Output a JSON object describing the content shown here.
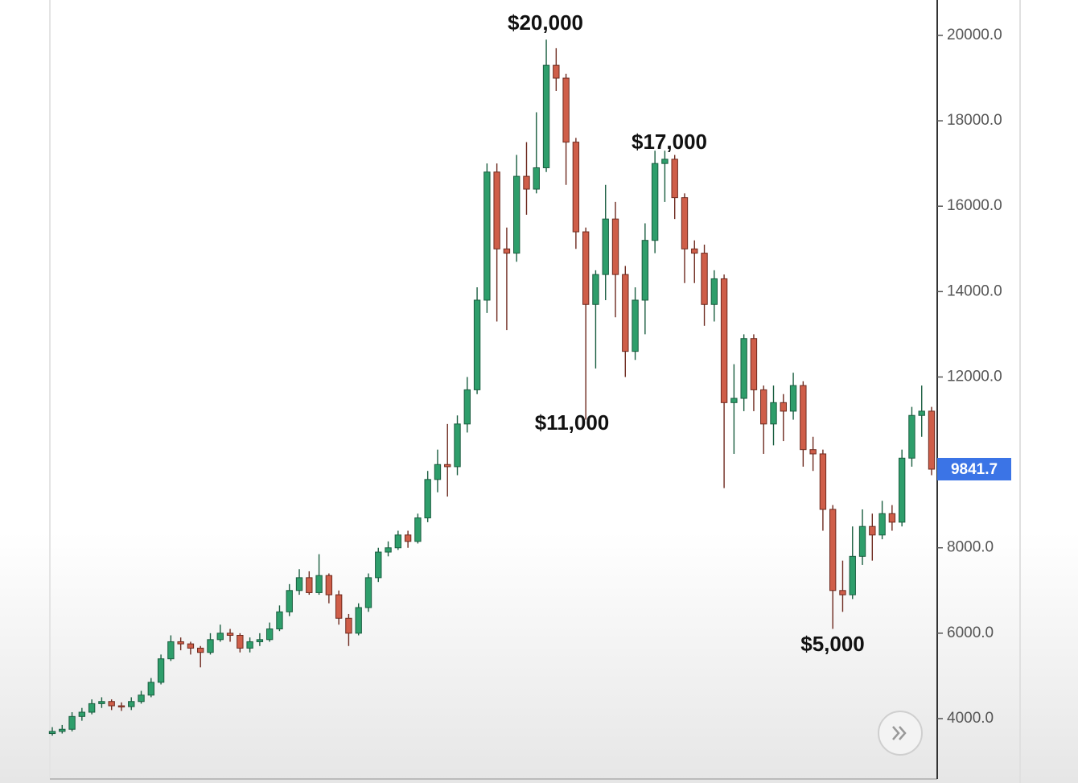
{
  "chart_data": {
    "type": "candlestick",
    "up_color": "#2e9e6b",
    "down_color": "#cf5e49",
    "open": [
      3650,
      3700,
      3750,
      4050,
      4150,
      4350,
      4400,
      4300,
      4280,
      4400,
      4550,
      4850,
      5400,
      5800,
      5750,
      5650,
      5550,
      5850,
      6000,
      5950,
      5650,
      5800,
      5850,
      6100,
      6500,
      7000,
      7300,
      6950,
      7350,
      6900,
      6350,
      6000,
      6600,
      7300,
      7900,
      8000,
      8300,
      8150,
      8700,
      9600,
      9950,
      9900,
      10900,
      11700,
      13800,
      16800,
      15000,
      14900,
      16700,
      16400,
      16900,
      19300,
      19000,
      17500,
      15400,
      13700,
      14400,
      15700,
      14400,
      12600,
      13800,
      15200,
      17000,
      17100,
      16200,
      15000,
      14900,
      13700,
      14300,
      11400,
      11500,
      12900,
      11700,
      10900,
      11400,
      11200,
      11800,
      10300,
      10200,
      8900,
      7000,
      6900,
      7800,
      8500,
      8300,
      8800,
      8600,
      10100,
      11100,
      11200
    ],
    "high": [
      3800,
      3850,
      4150,
      4250,
      4450,
      4500,
      4450,
      4380,
      4500,
      4650,
      4950,
      5500,
      5950,
      5900,
      5800,
      5700,
      6000,
      6200,
      6100,
      6000,
      5900,
      6000,
      6250,
      6650,
      7150,
      7500,
      7450,
      7850,
      7400,
      7000,
      6450,
      6700,
      7400,
      8000,
      8150,
      8400,
      8400,
      8800,
      9800,
      10300,
      10900,
      11100,
      12000,
      14100,
      17000,
      17000,
      15500,
      17200,
      17500,
      18200,
      19900,
      19700,
      19100,
      17600,
      15500,
      14500,
      16500,
      16100,
      14600,
      14100,
      15600,
      17300,
      17300,
      17200,
      16300,
      15200,
      15100,
      14500,
      14400,
      12300,
      13000,
      13000,
      11800,
      11800,
      11600,
      12100,
      11900,
      10600,
      10300,
      9000,
      7700,
      8500,
      8900,
      8800,
      9100,
      9000,
      10300,
      11300,
      11800,
      11300
    ],
    "low": [
      3600,
      3650,
      3700,
      3950,
      4100,
      4250,
      4200,
      4180,
      4200,
      4350,
      4500,
      4800,
      5350,
      5600,
      5500,
      5200,
      5500,
      5800,
      5800,
      5550,
      5550,
      5700,
      5800,
      6050,
      6400,
      6900,
      6900,
      6900,
      6700,
      6200,
      5700,
      5950,
      6500,
      7200,
      7800,
      7950,
      8000,
      8100,
      8600,
      9300,
      9200,
      9700,
      10700,
      11600,
      13500,
      13300,
      13100,
      14700,
      15800,
      16300,
      16800,
      18700,
      16500,
      15000,
      11000,
      12200,
      13800,
      13400,
      12000,
      12400,
      13000,
      14900,
      16100,
      15700,
      14200,
      14200,
      13200,
      13300,
      9400,
      10200,
      11200,
      11200,
      10200,
      10400,
      10500,
      11000,
      9900,
      9800,
      8400,
      6100,
      6500,
      6800,
      7600,
      7700,
      8200,
      8400,
      8500,
      9900,
      10600,
      9700
    ],
    "close": [
      3700,
      3750,
      4050,
      4150,
      4350,
      4400,
      4300,
      4280,
      4400,
      4550,
      4850,
      5400,
      5800,
      5750,
      5650,
      5550,
      5850,
      6000,
      5950,
      5650,
      5800,
      5850,
      6100,
      6500,
      7000,
      7300,
      6950,
      7350,
      6900,
      6350,
      6000,
      6600,
      7300,
      7900,
      8000,
      8300,
      8150,
      8700,
      9600,
      9950,
      9900,
      10900,
      11700,
      13800,
      16800,
      15000,
      14900,
      16700,
      16400,
      16900,
      19300,
      19000,
      17500,
      15400,
      13700,
      14400,
      15700,
      14400,
      12600,
      13800,
      15200,
      17000,
      17100,
      16200,
      15000,
      14900,
      13700,
      14300,
      11400,
      11500,
      12900,
      11700,
      10900,
      11400,
      11200,
      11800,
      10300,
      10200,
      8900,
      7000,
      6900,
      7800,
      8500,
      8300,
      8800,
      8600,
      10100,
      11100,
      11200,
      9841.7
    ],
    "ylim": [
      2586,
      20829
    ],
    "yticks": [
      {
        "value": 4000,
        "label": "4000.0"
      },
      {
        "value": 6000,
        "label": "6000.0"
      },
      {
        "value": 8000,
        "label": "8000.0"
      },
      {
        "value": 10000,
        "label": ""
      },
      {
        "value": 12000,
        "label": "12000.0"
      },
      {
        "value": 14000,
        "label": "14000.0"
      },
      {
        "value": 16000,
        "label": "16000.0"
      },
      {
        "value": 18000,
        "label": "18000.0"
      },
      {
        "value": 20000,
        "label": "20000.0"
      }
    ],
    "last_price": 9841.7,
    "last_price_color": "#3b74e6",
    "annotations": [
      "$20,000",
      "$17,000",
      "$11,000",
      "$5,000"
    ]
  }
}
